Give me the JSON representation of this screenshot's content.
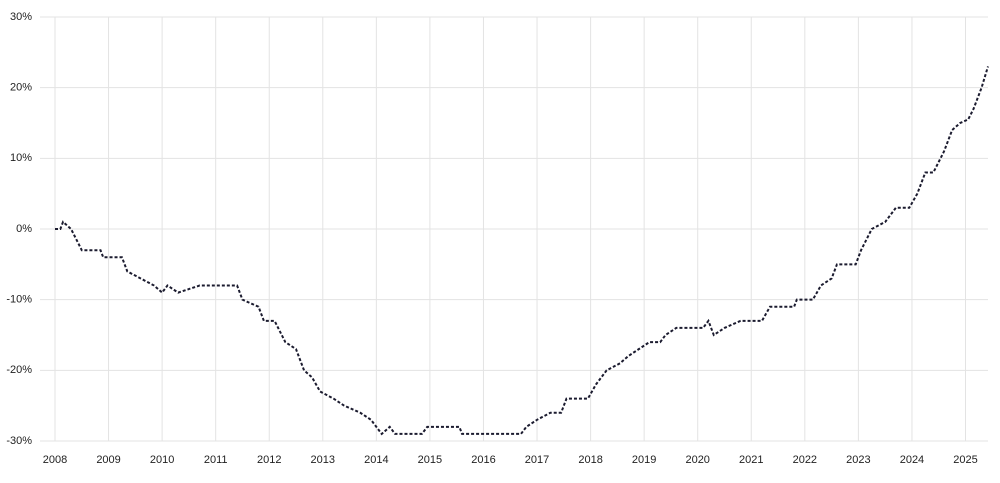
{
  "chart_data": {
    "type": "line",
    "x": [
      2008.0,
      2008.1,
      2008.15,
      2008.3,
      2008.5,
      2008.85,
      2008.9,
      2009.25,
      2009.35,
      2009.6,
      2009.85,
      2010.0,
      2010.1,
      2010.3,
      2010.7,
      2011.4,
      2011.5,
      2011.8,
      2011.9,
      2012.1,
      2012.3,
      2012.5,
      2012.65,
      2012.8,
      2012.95,
      2013.2,
      2013.4,
      2013.7,
      2013.9,
      2014.1,
      2014.25,
      2014.35,
      2014.85,
      2014.95,
      2015.55,
      2015.6,
      2016.7,
      2016.8,
      2017.0,
      2017.25,
      2017.45,
      2017.55,
      2017.95,
      2018.1,
      2018.3,
      2018.55,
      2018.7,
      2018.9,
      2019.1,
      2019.3,
      2019.4,
      2019.6,
      2020.1,
      2020.2,
      2020.3,
      2020.5,
      2020.8,
      2021.2,
      2021.35,
      2021.8,
      2021.85,
      2022.15,
      2022.3,
      2022.5,
      2022.6,
      2022.95,
      2023.05,
      2023.25,
      2023.5,
      2023.7,
      2023.95,
      2024.1,
      2024.25,
      2024.4,
      2024.6,
      2024.75,
      2024.9,
      2025.05,
      2025.15,
      2025.3,
      2025.42
    ],
    "series": [
      {
        "color": "#1b1b2f",
        "values": [
          0,
          0,
          1,
          0,
          -3,
          -3,
          -4,
          -4,
          -6,
          -7,
          -8,
          -9,
          -8,
          -9,
          -8,
          -8,
          -10,
          -11,
          -13,
          -13,
          -16,
          -17,
          -20,
          -21,
          -23,
          -24,
          -25,
          -26,
          -27,
          -29,
          -28,
          -29,
          -29,
          -28,
          -28,
          -29,
          -29,
          -28,
          -27,
          -26,
          -26,
          -24,
          -24,
          -22,
          -20,
          -19,
          -18,
          -17,
          -16,
          -16,
          -15,
          -14,
          -14,
          -13,
          -15,
          -14,
          -13,
          -13,
          -11,
          -11,
          -10,
          -10,
          -8,
          -7,
          -5,
          -5,
          -3,
          0,
          1,
          3,
          3,
          5,
          8,
          8,
          11,
          14,
          15,
          15.5,
          17,
          20,
          23
        ]
      }
    ],
    "xlim": [
      2007.72,
      2025.42
    ],
    "xticks": [
      2008,
      2009,
      2010,
      2011,
      2012,
      2013,
      2014,
      2015,
      2016,
      2017,
      2018,
      2019,
      2020,
      2021,
      2022,
      2023,
      2024,
      2025
    ],
    "ylim": [
      -30,
      30
    ],
    "yticks": [
      {
        "value": -30,
        "label": "-30%"
      },
      {
        "value": -20,
        "label": "-20%"
      },
      {
        "value": -10,
        "label": "-10%"
      },
      {
        "value": 0,
        "label": "0%"
      },
      {
        "value": 10,
        "label": "10%"
      },
      {
        "value": 20,
        "label": "20%"
      },
      {
        "value": 30,
        "label": "30%"
      }
    ],
    "grid": true
  }
}
